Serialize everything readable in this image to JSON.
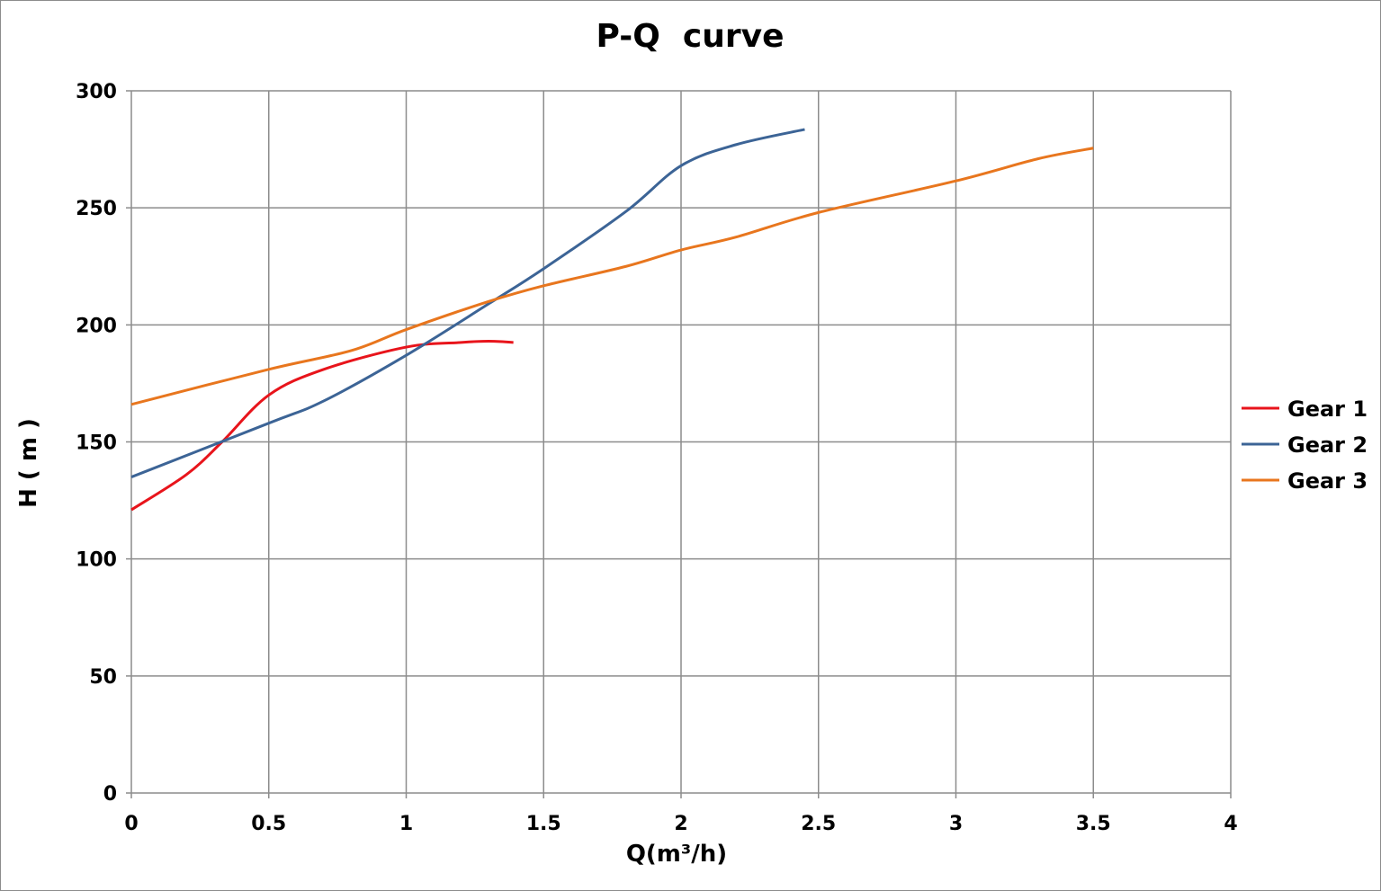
{
  "chart_data": {
    "type": "line",
    "title": "P-Q  curve",
    "xlabel": "Q(m³/h)",
    "ylabel": "H ( m )",
    "xlim": [
      0,
      4
    ],
    "ylim": [
      0,
      300
    ],
    "xticks": [
      "0",
      "0.5",
      "1",
      "1.5",
      "2",
      "2.5",
      "3",
      "3.5",
      "4"
    ],
    "xtick_values": [
      0,
      0.5,
      1,
      1.5,
      2,
      2.5,
      3,
      3.5,
      4
    ],
    "yticks": [
      "0",
      "50",
      "100",
      "150",
      "200",
      "250",
      "300"
    ],
    "ytick_values": [
      0,
      50,
      100,
      150,
      200,
      250,
      300
    ],
    "grid": true,
    "legend_position": "right",
    "series": [
      {
        "name": "Gear 1",
        "color": "#e8141b",
        "x": [
          0,
          0.2,
          0.33,
          0.5,
          0.7,
          1.0,
          1.2,
          1.3,
          1.39
        ],
        "y": [
          121,
          136,
          150,
          170,
          181,
          190.5,
          192.5,
          193,
          192.5
        ]
      },
      {
        "name": "Gear 2",
        "color": "#3c6496",
        "x": [
          0,
          0.5,
          0.7,
          1.0,
          1.3,
          1.5,
          1.8,
          2.0,
          2.2,
          2.45
        ],
        "y": [
          135,
          158,
          167.5,
          187,
          209,
          224,
          248.5,
          268,
          277,
          283.5
        ]
      },
      {
        "name": "Gear 3",
        "color": "#e8761e",
        "x": [
          0,
          0.5,
          0.8,
          1.0,
          1.3,
          1.5,
          1.8,
          2.0,
          2.2,
          2.5,
          3.0,
          3.3,
          3.5
        ],
        "y": [
          166,
          181,
          189,
          198,
          210,
          216.7,
          225,
          232,
          237.5,
          248,
          261.5,
          271,
          275.5
        ]
      }
    ]
  }
}
